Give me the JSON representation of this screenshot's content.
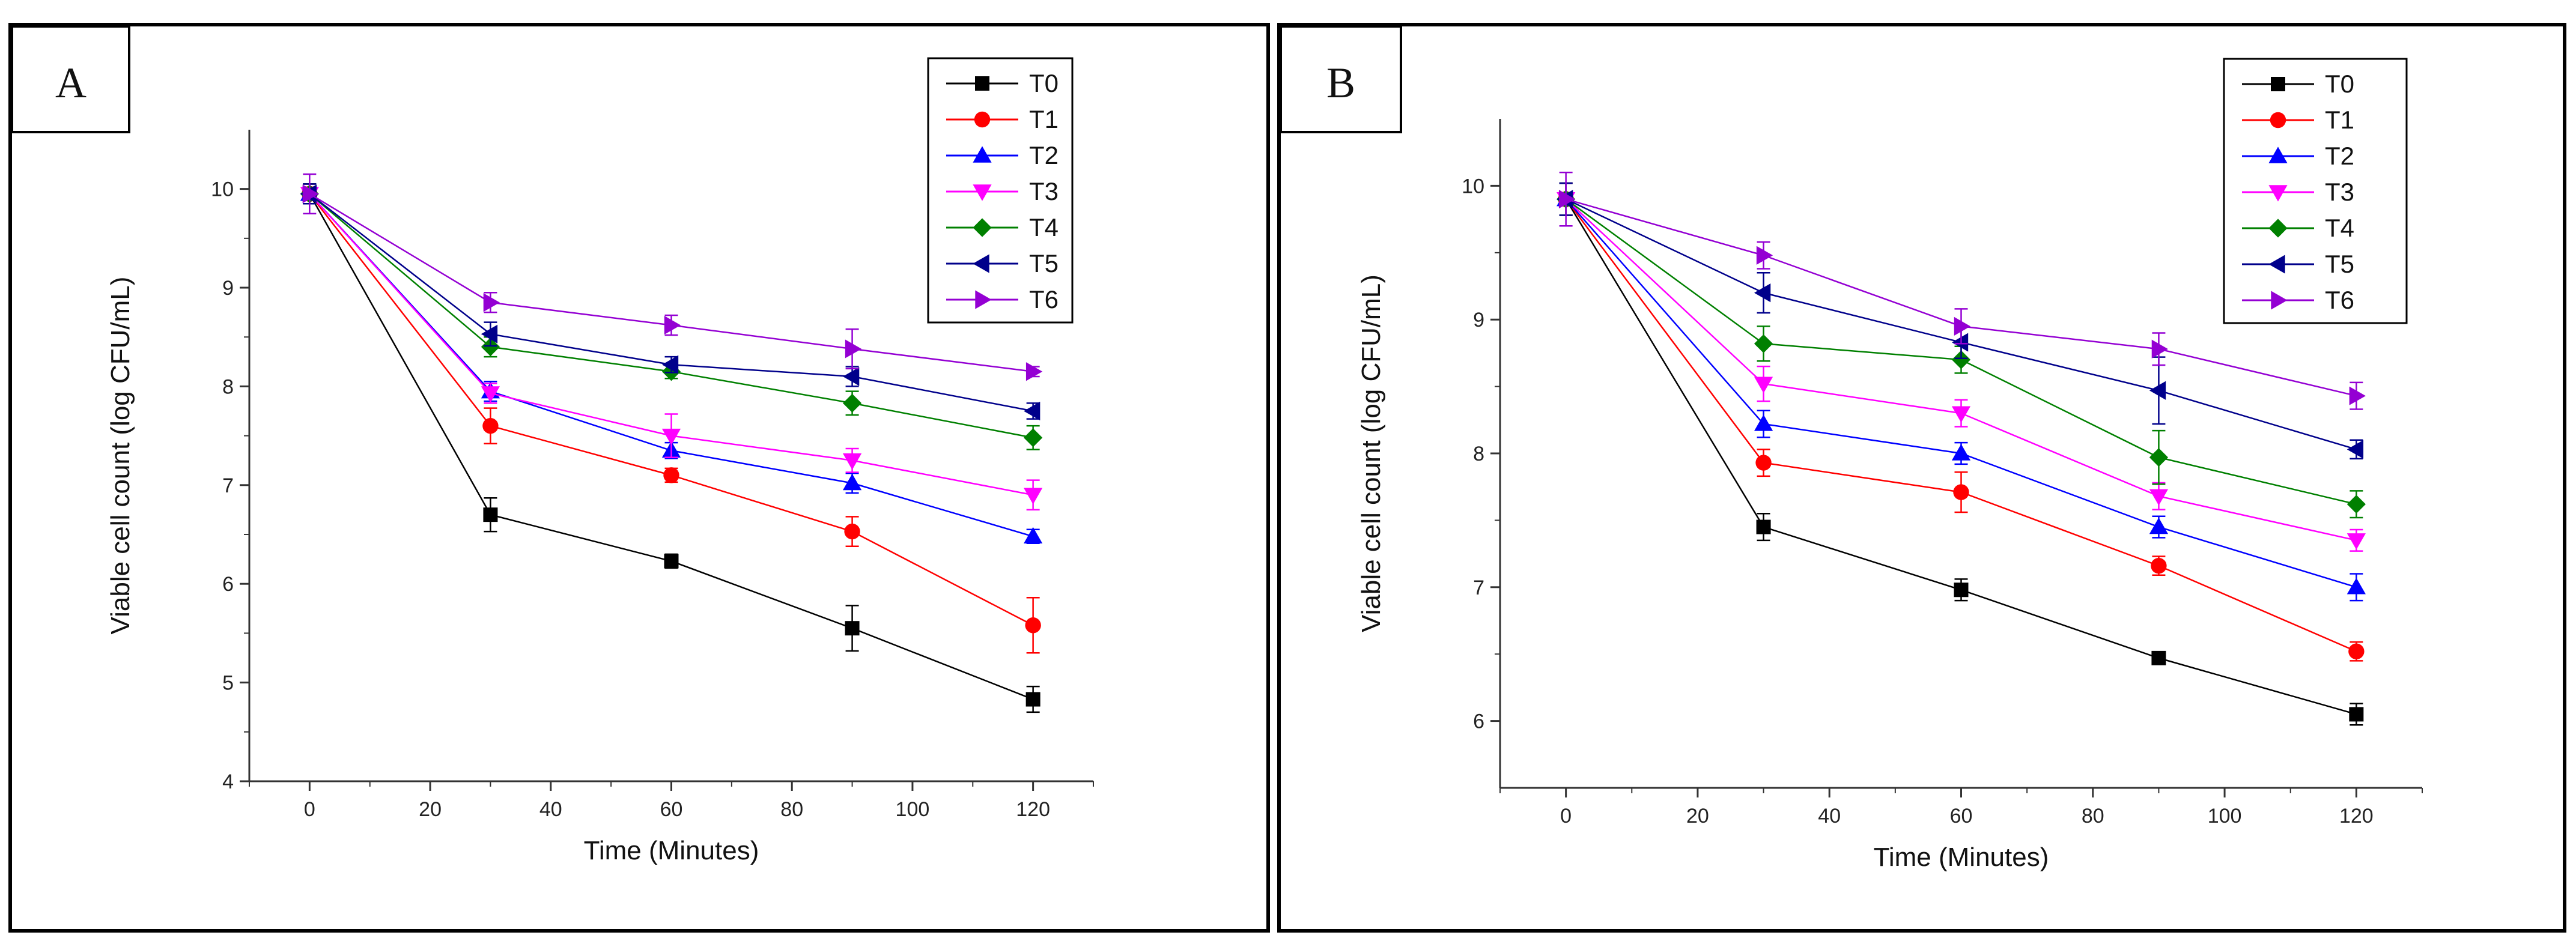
{
  "chart_data": [
    {
      "type": "line",
      "panel_label": "A",
      "xlabel": "Time (Minutes)",
      "ylabel": "Viable cell count (log CFU/mL)",
      "x": [
        0,
        30,
        60,
        90,
        120
      ],
      "xlim": [
        -10,
        130
      ],
      "ylim": [
        4,
        10.6
      ],
      "xticks": [
        0,
        20,
        40,
        60,
        80,
        100,
        120
      ],
      "yticks": [
        4,
        5,
        6,
        7,
        8,
        9,
        10
      ],
      "legend_position": "top-right",
      "series": [
        {
          "name": "T0",
          "color": "#000000",
          "marker": "square",
          "values": [
            9.95,
            6.7,
            6.23,
            5.55,
            4.83
          ],
          "errors": [
            0.1,
            0.17,
            0.07,
            0.23,
            0.13
          ]
        },
        {
          "name": "T1",
          "color": "#ff0000",
          "marker": "circle",
          "values": [
            9.95,
            7.6,
            7.1,
            6.53,
            5.58
          ],
          "errors": [
            0.1,
            0.18,
            0.07,
            0.15,
            0.28
          ]
        },
        {
          "name": "T2",
          "color": "#0000ff",
          "marker": "triangle-up",
          "values": [
            9.95,
            7.95,
            7.35,
            7.02,
            6.48
          ],
          "errors": [
            0.1,
            0.1,
            0.08,
            0.1,
            0.07
          ]
        },
        {
          "name": "T3",
          "color": "#ff00ff",
          "marker": "triangle-down",
          "values": [
            9.95,
            7.93,
            7.5,
            7.25,
            6.9
          ],
          "errors": [
            0.1,
            0.1,
            0.22,
            0.12,
            0.15
          ]
        },
        {
          "name": "T4",
          "color": "#008000",
          "marker": "diamond",
          "values": [
            9.95,
            8.4,
            8.15,
            7.83,
            7.48
          ],
          "errors": [
            0.1,
            0.1,
            0.07,
            0.12,
            0.12
          ]
        },
        {
          "name": "T5",
          "color": "#00008b",
          "marker": "triangle-left",
          "values": [
            9.95,
            8.53,
            8.22,
            8.1,
            7.75
          ],
          "errors": [
            0.1,
            0.12,
            0.08,
            0.1,
            0.08
          ]
        },
        {
          "name": "T6",
          "color": "#9400d3",
          "marker": "triangle-right",
          "values": [
            9.95,
            8.85,
            8.62,
            8.38,
            8.15
          ],
          "errors": [
            0.2,
            0.1,
            0.1,
            0.2,
            0.05
          ]
        }
      ]
    },
    {
      "type": "line",
      "panel_label": "B",
      "xlabel": "Time (Minutes)",
      "ylabel": "Viable cell count (log CFU/mL)",
      "x": [
        0,
        30,
        60,
        90,
        120
      ],
      "xlim": [
        -10,
        130
      ],
      "ylim": [
        5.5,
        10.5
      ],
      "xticks": [
        0,
        20,
        40,
        60,
        80,
        100,
        120
      ],
      "yticks": [
        6,
        7,
        8,
        9,
        10
      ],
      "legend_position": "top-right",
      "series": [
        {
          "name": "T0",
          "color": "#000000",
          "marker": "square",
          "values": [
            9.9,
            7.45,
            6.98,
            6.47,
            6.05
          ],
          "errors": [
            0.12,
            0.1,
            0.08,
            0.04,
            0.08
          ]
        },
        {
          "name": "T1",
          "color": "#ff0000",
          "marker": "circle",
          "values": [
            9.9,
            7.93,
            7.71,
            7.16,
            6.52
          ],
          "errors": [
            0.12,
            0.1,
            0.15,
            0.07,
            0.07
          ]
        },
        {
          "name": "T2",
          "color": "#0000ff",
          "marker": "triangle-up",
          "values": [
            9.9,
            8.22,
            8.0,
            7.45,
            7.0
          ],
          "errors": [
            0.12,
            0.1,
            0.08,
            0.08,
            0.1
          ]
        },
        {
          "name": "T3",
          "color": "#ff00ff",
          "marker": "triangle-down",
          "values": [
            9.9,
            8.52,
            8.3,
            7.68,
            7.35
          ],
          "errors": [
            0.12,
            0.13,
            0.1,
            0.1,
            0.08
          ]
        },
        {
          "name": "T4",
          "color": "#008000",
          "marker": "diamond",
          "values": [
            9.9,
            8.82,
            8.7,
            7.97,
            7.62
          ],
          "errors": [
            0.12,
            0.13,
            0.1,
            0.2,
            0.1
          ]
        },
        {
          "name": "T5",
          "color": "#00008b",
          "marker": "triangle-left",
          "values": [
            9.9,
            9.2,
            8.83,
            8.47,
            8.03
          ],
          "errors": [
            0.12,
            0.15,
            0.12,
            0.25,
            0.07
          ]
        },
        {
          "name": "T6",
          "color": "#9400d3",
          "marker": "triangle-right",
          "values": [
            9.9,
            9.48,
            8.95,
            8.78,
            8.43
          ],
          "errors": [
            0.2,
            0.1,
            0.13,
            0.12,
            0.1
          ]
        }
      ]
    }
  ]
}
